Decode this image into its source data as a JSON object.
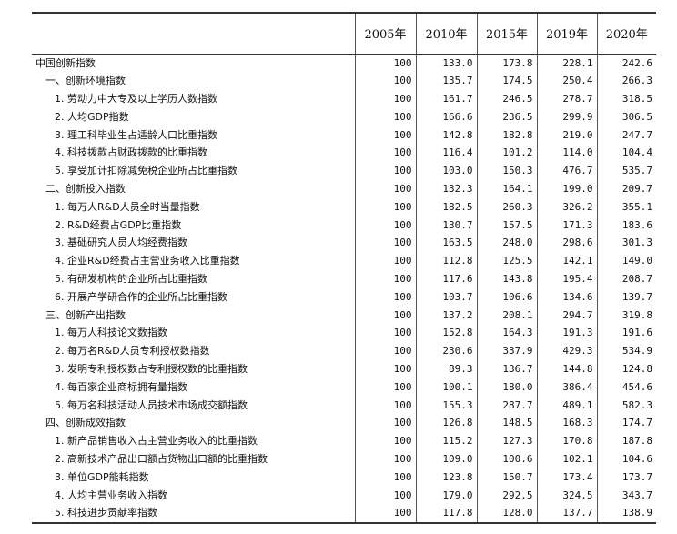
{
  "columns": [
    "2005年",
    "2010年",
    "2015年",
    "2019年",
    "2020年"
  ],
  "rows": [
    {
      "label": "中国创新指数",
      "level": 0,
      "values": [
        "100",
        "133.0",
        "173.8",
        "228.1",
        "242.6"
      ]
    },
    {
      "label": "一、创新环境指数",
      "level": 1,
      "values": [
        "100",
        "135.7",
        "174.5",
        "250.4",
        "266.3"
      ]
    },
    {
      "label": "1. 劳动力中大专及以上学历人数指数",
      "level": 2,
      "values": [
        "100",
        "161.7",
        "246.5",
        "278.7",
        "318.5"
      ]
    },
    {
      "label": "2. 人均GDP指数",
      "level": 2,
      "values": [
        "100",
        "166.6",
        "236.5",
        "299.9",
        "306.5"
      ]
    },
    {
      "label": "3. 理工科毕业生占适龄人口比重指数",
      "level": 2,
      "values": [
        "100",
        "142.8",
        "182.8",
        "219.0",
        "247.7"
      ]
    },
    {
      "label": "4. 科技拨款占财政拨款的比重指数",
      "level": 2,
      "values": [
        "100",
        "116.4",
        "101.2",
        "114.0",
        "104.4"
      ]
    },
    {
      "label": "5. 享受加计扣除减免税企业所占比重指数",
      "level": 2,
      "values": [
        "100",
        "103.0",
        "150.3",
        "476.7",
        "535.7"
      ]
    },
    {
      "label": "二、创新投入指数",
      "level": 1,
      "values": [
        "100",
        "132.3",
        "164.1",
        "199.0",
        "209.7"
      ]
    },
    {
      "label": "1. 每万人R&D人员全时当量指数",
      "level": 2,
      "values": [
        "100",
        "182.5",
        "260.3",
        "326.2",
        "355.1"
      ]
    },
    {
      "label": "2. R&D经费占GDP比重指数",
      "level": 2,
      "values": [
        "100",
        "130.7",
        "157.5",
        "171.3",
        "183.6"
      ]
    },
    {
      "label": "3. 基础研究人员人均经费指数",
      "level": 2,
      "values": [
        "100",
        "163.5",
        "248.0",
        "298.6",
        "301.3"
      ]
    },
    {
      "label": "4. 企业R&D经费占主营业务收入比重指数",
      "level": 2,
      "values": [
        "100",
        "112.8",
        "125.5",
        "142.1",
        "149.0"
      ]
    },
    {
      "label": "5. 有研发机构的企业所占比重指数",
      "level": 2,
      "values": [
        "100",
        "117.6",
        "143.8",
        "195.4",
        "208.7"
      ]
    },
    {
      "label": "6. 开展产学研合作的企业所占比重指数",
      "level": 2,
      "values": [
        "100",
        "103.7",
        "106.6",
        "134.6",
        "139.7"
      ]
    },
    {
      "label": "三、创新产出指数",
      "level": 1,
      "values": [
        "100",
        "137.2",
        "208.1",
        "294.7",
        "319.8"
      ]
    },
    {
      "label": "1. 每万人科技论文数指数",
      "level": 2,
      "values": [
        "100",
        "152.8",
        "164.3",
        "191.3",
        "191.6"
      ]
    },
    {
      "label": "2. 每万名R&D人员专利授权数指数",
      "level": 2,
      "values": [
        "100",
        "230.6",
        "337.9",
        "429.3",
        "534.9"
      ]
    },
    {
      "label": "3. 发明专利授权数占专利授权数的比重指数",
      "level": 2,
      "values": [
        "100",
        "89.3",
        "136.7",
        "144.8",
        "124.8"
      ]
    },
    {
      "label": "4. 每百家企业商标拥有量指数",
      "level": 2,
      "values": [
        "100",
        "100.1",
        "180.0",
        "386.4",
        "454.6"
      ]
    },
    {
      "label": "5. 每万名科技活动人员技术市场成交额指数",
      "level": 2,
      "values": [
        "100",
        "155.3",
        "287.7",
        "489.1",
        "582.3"
      ]
    },
    {
      "label": "四、创新成效指数",
      "level": 1,
      "values": [
        "100",
        "126.8",
        "148.5",
        "168.3",
        "174.7"
      ]
    },
    {
      "label": "1. 新产品销售收入占主营业务收入的比重指数",
      "level": 2,
      "values": [
        "100",
        "115.2",
        "127.3",
        "170.8",
        "187.8"
      ]
    },
    {
      "label": "2. 高新技术产品出口额占货物出口额的比重指数",
      "level": 2,
      "values": [
        "100",
        "109.0",
        "100.6",
        "102.1",
        "104.6"
      ]
    },
    {
      "label": "3. 单位GDP能耗指数",
      "level": 2,
      "values": [
        "100",
        "123.8",
        "150.7",
        "173.4",
        "173.7"
      ]
    },
    {
      "label": "4. 人均主营业务收入指数",
      "level": 2,
      "values": [
        "100",
        "179.0",
        "292.5",
        "324.5",
        "343.7"
      ]
    },
    {
      "label": "5. 科技进步贡献率指数",
      "level": 2,
      "values": [
        "100",
        "117.8",
        "128.0",
        "137.7",
        "138.9"
      ]
    }
  ]
}
